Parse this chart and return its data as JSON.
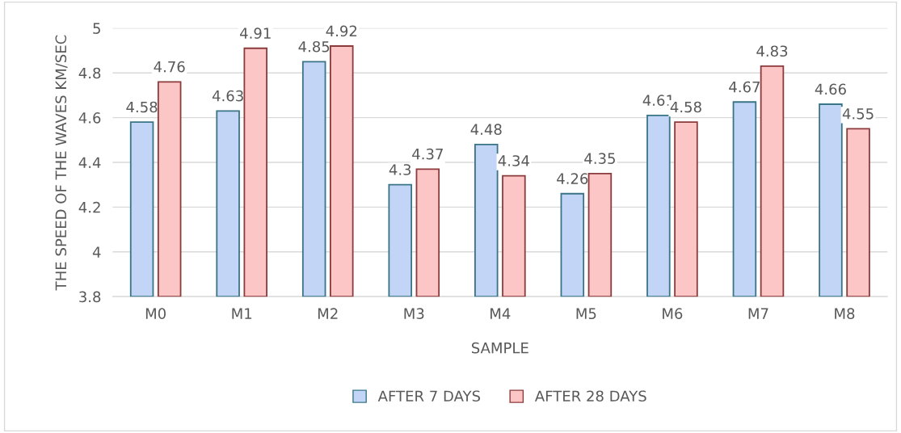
{
  "chart_data": {
    "type": "bar",
    "xlabel": "SAMPLE",
    "ylabel": "THE SPEED OF THE WAVES KM/SEC",
    "categories": [
      "M0",
      "M1",
      "M2",
      "M3",
      "M4",
      "M5",
      "M6",
      "M7",
      "M8"
    ],
    "series": [
      {
        "name": "AFTER 7 DAYS",
        "color": "#c2d5f6",
        "values": [
          4.58,
          4.63,
          4.85,
          4.3,
          4.48,
          4.26,
          4.61,
          4.67,
          4.66
        ]
      },
      {
        "name": "AFTER 28 DAYS",
        "color": "#fcc6c6",
        "values": [
          4.76,
          4.91,
          4.92,
          4.37,
          4.34,
          4.35,
          4.58,
          4.83,
          4.55
        ]
      }
    ],
    "ylim": [
      3.8,
      5
    ],
    "yticks": [
      3.8,
      4,
      4.2,
      4.4,
      4.6,
      4.8,
      5
    ],
    "grid": "y",
    "legend": "bottom",
    "data_labels": true
  }
}
